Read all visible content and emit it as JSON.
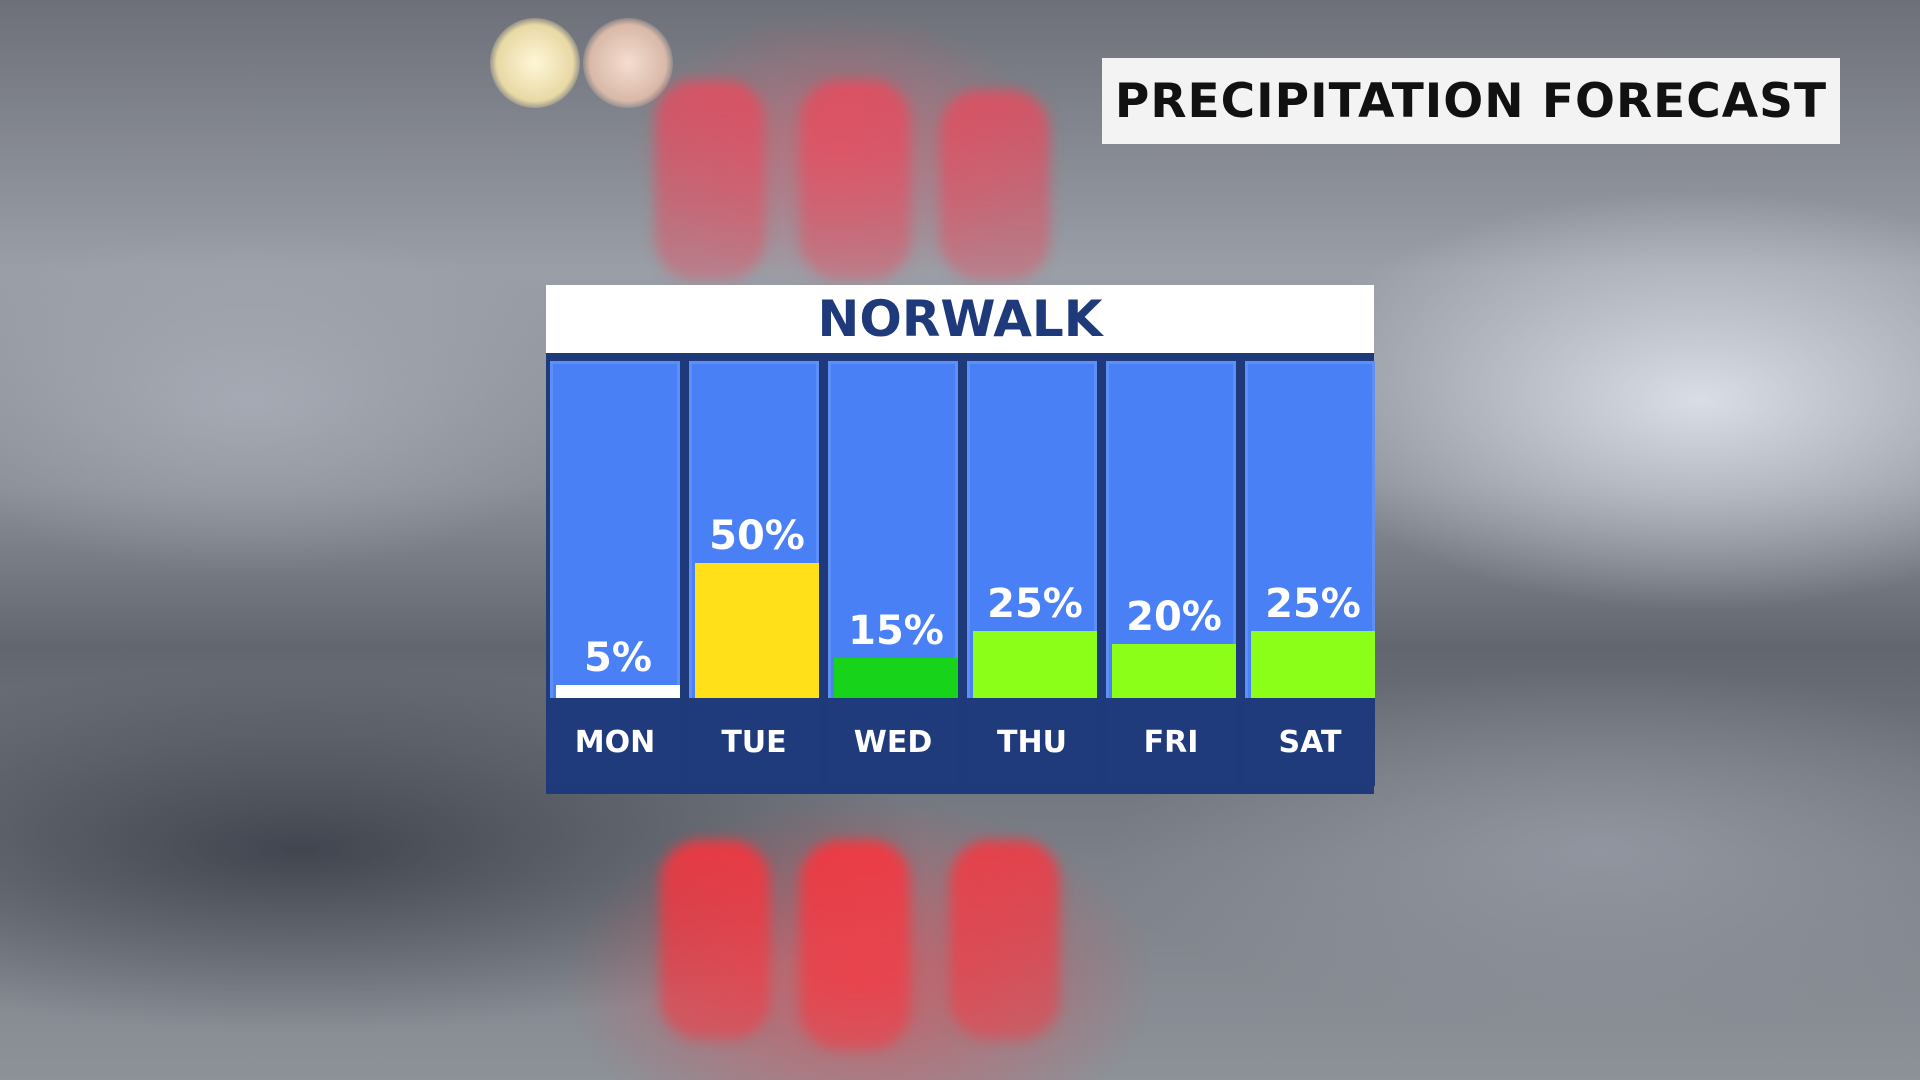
{
  "header": {
    "title": "PRECIPITATION FORECAST"
  },
  "chart_data": {
    "type": "bar",
    "title": "NORWALK",
    "categories": [
      "MON",
      "TUE",
      "WED",
      "THU",
      "FRI",
      "SAT"
    ],
    "values": [
      5,
      50,
      15,
      25,
      20,
      25
    ],
    "value_labels": [
      "5%",
      "50%",
      "15%",
      "25%",
      "20%",
      "25%"
    ],
    "ylim": [
      0,
      100
    ],
    "grid": false,
    "bar_colors": [
      "#ffffff",
      "#ffe019",
      "#17d41a",
      "#8cff19",
      "#8cff19",
      "#8cff19"
    ],
    "colors": {
      "column_background": "#4a80f5",
      "day_cell": "#203b7c",
      "title_text": "#1f3a7a"
    }
  }
}
